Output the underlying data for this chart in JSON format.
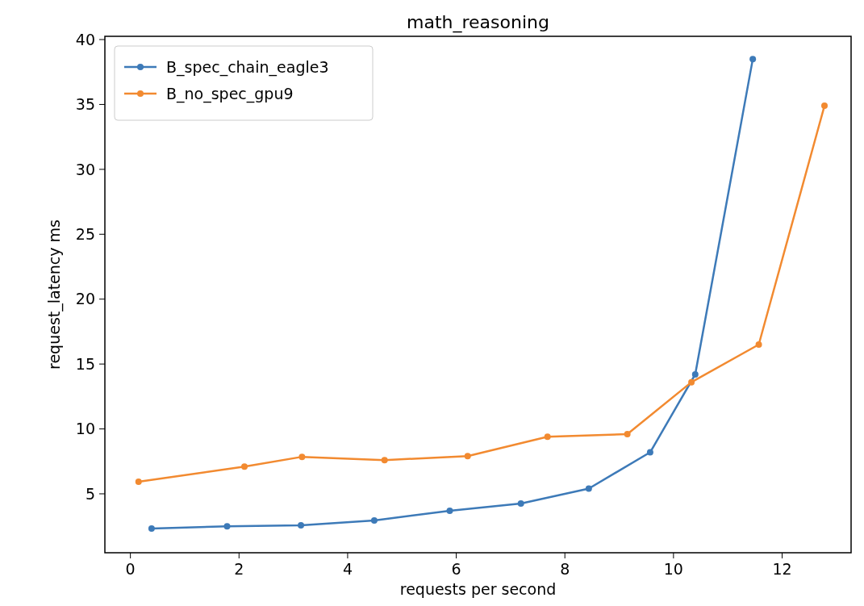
{
  "chart_data": {
    "type": "line",
    "title": "math_reasoning",
    "xlabel": "requests per second",
    "ylabel": "request_latency ms",
    "xlim": [
      -0.47,
      13.27
    ],
    "ylim": [
      0.46,
      40.25
    ],
    "xticks": [
      0,
      2,
      4,
      6,
      8,
      10,
      12
    ],
    "yticks": [
      5,
      10,
      15,
      20,
      25,
      30,
      35,
      40
    ],
    "grid": false,
    "legend": "top left",
    "marker": "circle",
    "line_style": "solid",
    "series": [
      {
        "name": "B_spec_chain_eagle3",
        "color": "#3d7ab8",
        "x": [
          0.39,
          1.78,
          3.14,
          4.49,
          5.88,
          7.19,
          8.44,
          9.57,
          10.4,
          11.46
        ],
        "values": [
          2.32,
          2.5,
          2.57,
          2.95,
          3.7,
          4.25,
          5.4,
          8.2,
          14.2,
          38.5
        ]
      },
      {
        "name": "B_no_spec_gpu9",
        "color": "#f28a30",
        "x": [
          0.15,
          2.1,
          3.16,
          4.68,
          6.21,
          7.68,
          9.15,
          10.33,
          11.57,
          12.78
        ],
        "values": [
          5.93,
          7.1,
          7.85,
          7.6,
          7.9,
          9.4,
          9.6,
          13.6,
          16.5,
          34.9
        ]
      }
    ]
  }
}
